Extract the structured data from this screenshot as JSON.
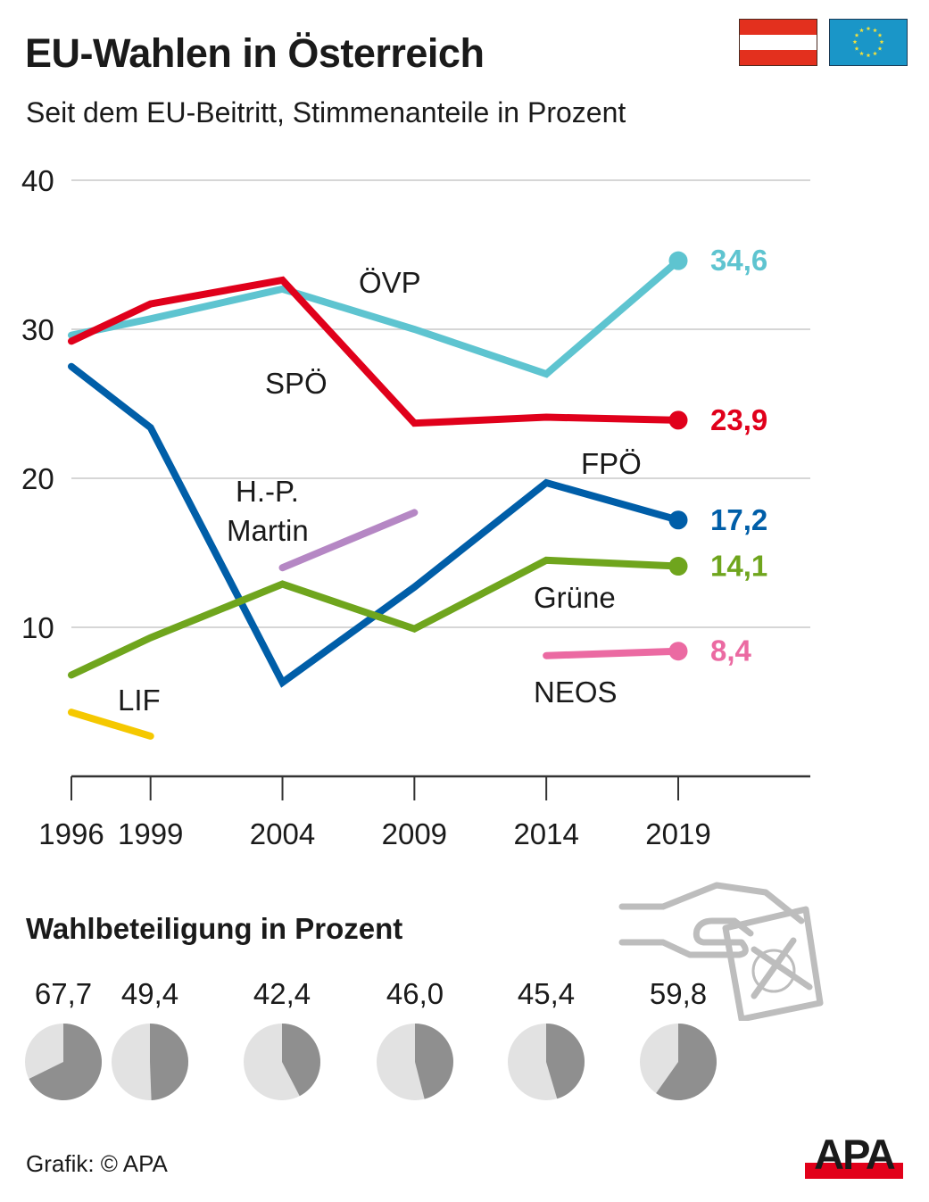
{
  "header": {
    "title": "EU-Wahlen in Österreich",
    "subtitle": "Seit dem EU-Beitritt, Stimmenanteile in Prozent",
    "flags": [
      {
        "name": "austria-flag",
        "colors": [
          "#e3301e",
          "#ffffff",
          "#e3301e"
        ]
      },
      {
        "name": "eu-flag",
        "colors": [
          "#1a96c8",
          "#f5e13a"
        ]
      }
    ]
  },
  "chart_data": [
    {
      "type": "line",
      "title": "EU-Wahlen in Österreich",
      "subtitle": "Seit dem EU-Beitritt, Stimmenanteile in Prozent",
      "xlabel": "",
      "ylabel": "",
      "x": [
        "1996",
        "1999",
        "2004",
        "2009",
        "2014",
        "2019"
      ],
      "yticks": [
        "10",
        "20",
        "30",
        "40"
      ],
      "ylim": [
        0,
        40
      ],
      "grid": true,
      "series": [
        {
          "name": "ÖVP",
          "color": "#5ec4d0",
          "values": [
            29.6,
            30.7,
            32.7,
            30.0,
            27.0,
            34.6
          ],
          "end_label": "34,6"
        },
        {
          "name": "SPÖ",
          "color": "#e0001b",
          "values": [
            29.2,
            31.7,
            33.3,
            23.7,
            24.1,
            23.9
          ],
          "end_label": "23,9"
        },
        {
          "name": "FPÖ",
          "color": "#005ea8",
          "values": [
            27.5,
            23.4,
            6.3,
            12.7,
            19.7,
            17.2
          ],
          "end_label": "17,2"
        },
        {
          "name": "Grüne",
          "color": "#6fa51d",
          "values": [
            6.8,
            9.3,
            12.9,
            9.9,
            14.5,
            14.1
          ],
          "end_label": "14,1"
        },
        {
          "name": "NEOS",
          "color": "#eb6aa2",
          "values": [
            null,
            null,
            null,
            null,
            8.1,
            8.4
          ],
          "end_label": "8,4"
        },
        {
          "name": "H.-P. Martin",
          "color": "#b587c4",
          "values": [
            null,
            null,
            14.0,
            17.7,
            null,
            null
          ],
          "end_label": ""
        },
        {
          "name": "LIF",
          "color": "#f5c800",
          "values": [
            4.3,
            2.7,
            null,
            null,
            null,
            null
          ],
          "end_label": ""
        }
      ],
      "series_labels": [
        {
          "text": "ÖVP",
          "series": "ÖVP"
        },
        {
          "text": "SPÖ",
          "series": "SPÖ"
        },
        {
          "text": "FPÖ",
          "series": "FPÖ"
        },
        {
          "text": "Grüne",
          "series": "Grüne"
        },
        {
          "text": "NEOS",
          "series": "NEOS"
        },
        {
          "text": "H.-P.",
          "series": "H.-P. Martin"
        },
        {
          "text": "Martin",
          "series": "H.-P. Martin"
        },
        {
          "text": "LIF",
          "series": "LIF"
        }
      ]
    },
    {
      "type": "pie",
      "title": "Wahlbeteiligung in Prozent",
      "categories": [
        "1996",
        "1999",
        "2004",
        "2009",
        "2014",
        "2019"
      ],
      "values": [
        67.7,
        49.4,
        42.4,
        46.0,
        45.4,
        59.8
      ],
      "labels": [
        "67,7",
        "49,4",
        "42,4",
        "46,0",
        "45,4",
        "59,8"
      ],
      "colors": {
        "filled": "#8f8f8f",
        "rest": "#e2e2e2"
      }
    }
  ],
  "turnout": {
    "title": "Wahlbeteiligung in Prozent",
    "icon": "ballot-hand-icon"
  },
  "footer": {
    "credit": "Grafik: © APA",
    "logo_text": "APA",
    "logo_colors": {
      "text": "#1a1a1a",
      "bar": "#e2001a"
    }
  }
}
